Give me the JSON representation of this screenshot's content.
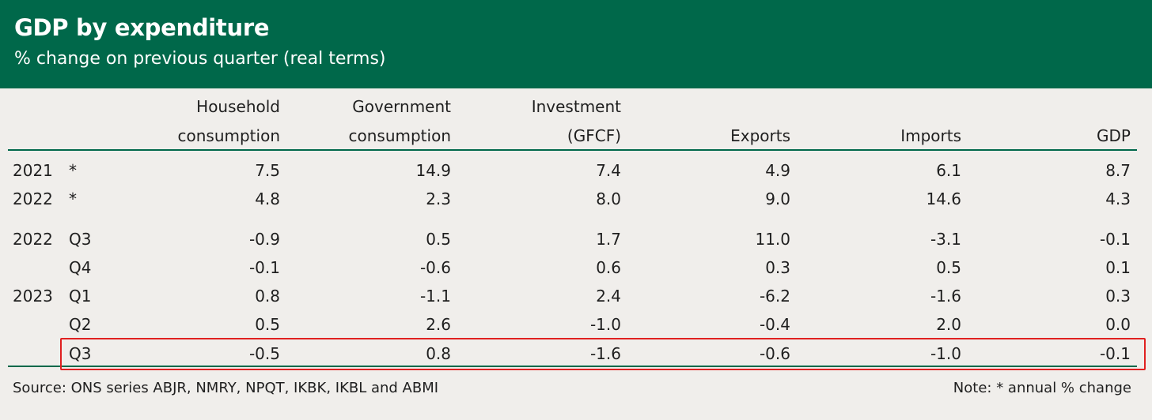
{
  "header": {
    "title": "GDP by expenditure",
    "subtitle": "% change on previous quarter (real terms)"
  },
  "columns": [
    {
      "line1": "Household",
      "line2": "consumption"
    },
    {
      "line1": "Government",
      "line2": "consumption"
    },
    {
      "line1": "Investment",
      "line2": "(GFCF)"
    },
    {
      "line1": "",
      "line2": "Exports"
    },
    {
      "line1": "",
      "line2": "Imports"
    },
    {
      "line1": "",
      "line2": "GDP"
    }
  ],
  "rows": [
    {
      "year": "2021",
      "period": "*",
      "values": [
        "7.5",
        "14.9",
        "7.4",
        "4.9",
        "6.1",
        "8.7"
      ]
    },
    {
      "year": "2022",
      "period": "*",
      "values": [
        "4.8",
        "2.3",
        "8.0",
        "9.0",
        "14.6",
        "4.3"
      ]
    },
    {
      "year": "2022",
      "period": "Q3",
      "values": [
        "-0.9",
        "0.5",
        "1.7",
        "11.0",
        "-3.1",
        "-0.1"
      ]
    },
    {
      "year": "",
      "period": "Q4",
      "values": [
        "-0.1",
        "-0.6",
        "0.6",
        "0.3",
        "0.5",
        "0.1"
      ]
    },
    {
      "year": "2023",
      "period": "Q1",
      "values": [
        "0.8",
        "-1.1",
        "2.4",
        "-6.2",
        "-1.6",
        "0.3"
      ]
    },
    {
      "year": "",
      "period": "Q2",
      "values": [
        "0.5",
        "2.6",
        "-1.0",
        "-0.4",
        "2.0",
        "0.0"
      ]
    },
    {
      "year": "",
      "period": "Q3",
      "values": [
        "-0.5",
        "0.8",
        "-1.6",
        "-0.6",
        "-1.0",
        "-0.1"
      ]
    }
  ],
  "highlighted_row": 6,
  "footer": {
    "source": "Source: ONS series ABJR, NMRY, NPQT, IKBK, IKBL and ABMI",
    "note": "Note: * annual % change"
  },
  "colors": {
    "header_bg": "#00684a",
    "highlight_border": "#e02020",
    "background": "#f0eeeb"
  },
  "chart_data": {
    "type": "table",
    "title": "GDP by expenditure",
    "subtitle": "% change on previous quarter (real terms)",
    "columns": [
      "Household consumption",
      "Government consumption",
      "Investment (GFCF)",
      "Exports",
      "Imports",
      "GDP"
    ],
    "row_labels": [
      "2021 *",
      "2022 *",
      "2022 Q3",
      "Q4",
      "2023 Q1",
      "Q2",
      "Q3"
    ],
    "values": [
      [
        7.5,
        14.9,
        7.4,
        4.9,
        6.1,
        8.7
      ],
      [
        4.8,
        2.3,
        8.0,
        9.0,
        14.6,
        4.3
      ],
      [
        -0.9,
        0.5,
        1.7,
        11.0,
        -3.1,
        -0.1
      ],
      [
        -0.1,
        -0.6,
        0.6,
        0.3,
        0.5,
        0.1
      ],
      [
        0.8,
        -1.1,
        2.4,
        -6.2,
        -1.6,
        0.3
      ],
      [
        0.5,
        2.6,
        -1.0,
        -0.4,
        2.0,
        0.0
      ],
      [
        -0.5,
        0.8,
        -1.6,
        -0.6,
        -1.0,
        -0.1
      ]
    ]
  }
}
